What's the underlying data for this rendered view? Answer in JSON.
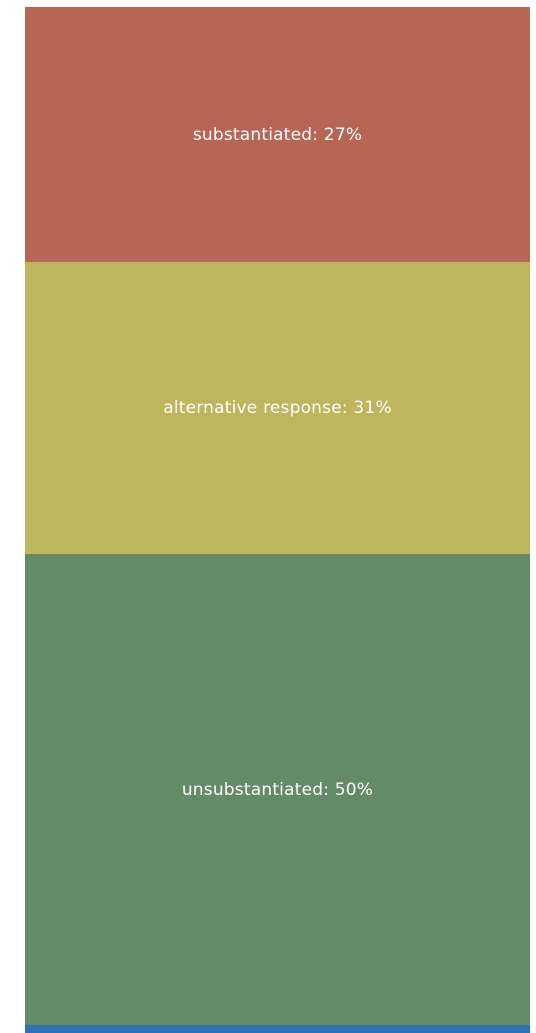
{
  "chart_data": {
    "type": "bar",
    "orientation": "stacked-vertical",
    "categories": [
      "substantiated",
      "alternative response",
      "unsubstantiated"
    ],
    "values": [
      27,
      31,
      50
    ],
    "unit": "%",
    "labels": [
      "substantiated:  27%",
      "alternative response:  31%",
      "unsubstantiated:  50%"
    ],
    "colors": [
      "#b76554",
      "#beb55f",
      "#658a68"
    ],
    "footer_color": "#2f73b5",
    "legend": "none",
    "grid": false
  }
}
